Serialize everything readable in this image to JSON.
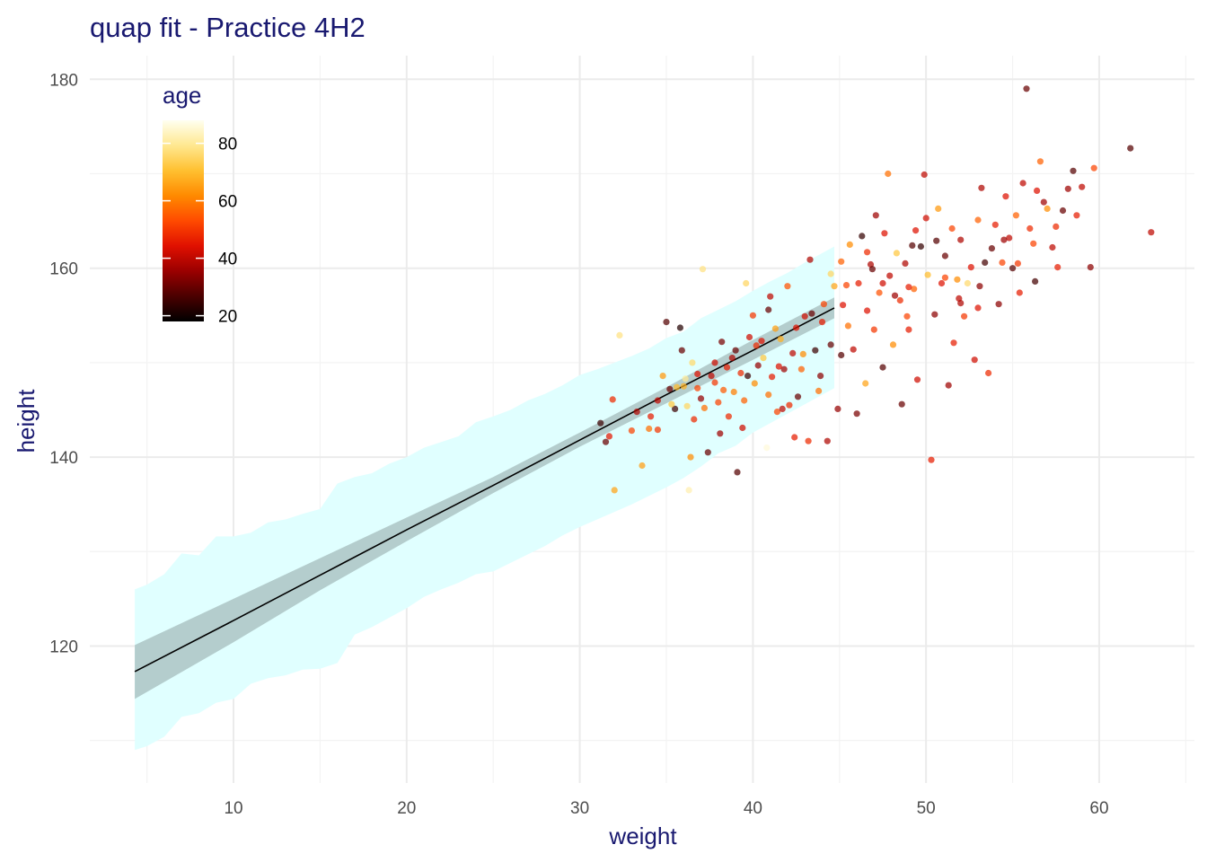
{
  "colors": {
    "title": "#191970",
    "grid_major": "#ebebeb",
    "grid_minor": "#f3f3f3",
    "pi_band": "#e0ffff",
    "ci_band": "#b4cdcd",
    "mean_line": "#000000",
    "legend_gradient": [
      "#000000",
      "#4a0000",
      "#9a0000",
      "#e01000",
      "#ff4a00",
      "#ff8a00",
      "#ffc030",
      "#ffe890",
      "#fffff0"
    ]
  },
  "chart_data": {
    "type": "scatter",
    "title": "quap fit - Practice 4H2",
    "xlabel": "weight",
    "ylabel": "height",
    "xlim": [
      1.7,
      65.5
    ],
    "ylim": [
      105.5,
      182.5
    ],
    "x_ticks": [
      10,
      20,
      30,
      40,
      50,
      60
    ],
    "y_ticks": [
      120,
      140,
      160,
      180
    ],
    "grid": true,
    "legend": {
      "title": "age",
      "position": "top-left",
      "ticks": [
        20,
        40,
        60,
        80
      ],
      "range": [
        18,
        88
      ]
    },
    "mean_line": {
      "x": [
        4.3,
        10,
        15,
        20,
        25,
        30,
        35,
        40,
        44.7
      ],
      "y": [
        117.3,
        122.7,
        127.5,
        132.3,
        137.0,
        141.8,
        146.6,
        151.3,
        155.8
      ]
    },
    "ci_band": {
      "x": [
        4.3,
        10,
        15,
        20,
        25,
        30,
        35,
        40,
        44.7
      ],
      "lower": [
        114.4,
        120.4,
        125.9,
        131.1,
        136.2,
        141.1,
        145.7,
        150.3,
        154.7
      ],
      "upper": [
        120.1,
        125.0,
        129.3,
        133.6,
        137.9,
        142.6,
        147.4,
        152.4,
        156.9
      ]
    },
    "pi_band": {
      "x": [
        4.3,
        5.0,
        6.0,
        7.0,
        8.0,
        9.0,
        10.0,
        11.0,
        12.0,
        13.0,
        14.0,
        15.0,
        16.0,
        17.0,
        18.0,
        19.0,
        20.0,
        21.0,
        22.0,
        23.0,
        24.0,
        25.0,
        26.0,
        27.0,
        28.0,
        29.0,
        30.0,
        31.0,
        32.0,
        33.0,
        34.0,
        35.0,
        36.0,
        37.0,
        38.0,
        39.0,
        40.0,
        41.0,
        42.0,
        43.0,
        44.0,
        44.7
      ],
      "upper": [
        126.0,
        126.5,
        127.6,
        129.8,
        129.6,
        131.6,
        131.6,
        132.0,
        133.1,
        133.4,
        134.0,
        134.5,
        137.2,
        137.9,
        138.3,
        139.3,
        140.0,
        141.0,
        141.6,
        142.2,
        143.7,
        144.3,
        145.0,
        146.0,
        146.7,
        147.6,
        148.7,
        149.3,
        150.0,
        150.7,
        151.5,
        152.6,
        153.3,
        154.7,
        155.6,
        156.5,
        157.6,
        158.6,
        159.5,
        160.6,
        161.6,
        162.3
      ],
      "lower": [
        109.0,
        109.4,
        110.4,
        112.5,
        112.9,
        114.0,
        114.4,
        116.0,
        116.6,
        116.9,
        117.5,
        117.6,
        118.2,
        121.2,
        122.0,
        123.0,
        124.0,
        125.2,
        126.0,
        126.7,
        127.6,
        127.9,
        128.8,
        129.7,
        130.6,
        131.7,
        132.6,
        133.4,
        134.2,
        135.0,
        135.9,
        136.8,
        137.8,
        139.0,
        140.4,
        141.2,
        142.6,
        143.6,
        144.6,
        145.6,
        146.6,
        147.3
      ]
    },
    "points": [
      [
        31.2,
        143.6,
        25
      ],
      [
        31.5,
        141.6,
        30
      ],
      [
        31.7,
        142.2,
        45
      ],
      [
        31.9,
        146.1,
        48
      ],
      [
        32.0,
        136.5,
        66
      ],
      [
        32.3,
        152.9,
        78
      ],
      [
        33.0,
        142.8,
        52
      ],
      [
        33.3,
        144.8,
        38
      ],
      [
        33.6,
        139.1,
        65
      ],
      [
        34.0,
        143.0,
        58
      ],
      [
        34.1,
        144.3,
        46
      ],
      [
        34.5,
        142.9,
        50
      ],
      [
        34.8,
        148.6,
        64
      ],
      [
        35.0,
        154.3,
        28
      ],
      [
        35.2,
        147.2,
        30
      ],
      [
        35.5,
        145.1,
        25
      ],
      [
        35.6,
        147.4,
        70
      ],
      [
        35.8,
        153.7,
        22
      ],
      [
        36.0,
        147.5,
        68
      ],
      [
        36.1,
        148.3,
        80
      ],
      [
        36.2,
        145.4,
        75
      ],
      [
        36.3,
        136.5,
        82
      ],
      [
        36.4,
        140.0,
        62
      ],
      [
        36.5,
        150.0,
        76
      ],
      [
        36.6,
        144.0,
        48
      ],
      [
        36.8,
        148.8,
        44
      ],
      [
        37.0,
        146.2,
        35
      ],
      [
        37.1,
        159.9,
        78
      ],
      [
        37.2,
        145.2,
        58
      ],
      [
        37.4,
        140.5,
        30
      ],
      [
        37.6,
        148.6,
        40
      ],
      [
        37.8,
        150.0,
        42
      ],
      [
        38.0,
        145.8,
        52
      ],
      [
        38.1,
        142.5,
        36
      ],
      [
        38.3,
        147.1,
        55
      ],
      [
        38.5,
        149.5,
        46
      ],
      [
        38.6,
        144.3,
        48
      ],
      [
        38.8,
        150.5,
        38
      ],
      [
        39.0,
        151.3,
        30
      ],
      [
        39.1,
        138.4,
        28
      ],
      [
        39.3,
        148.9,
        48
      ],
      [
        39.5,
        146.0,
        56
      ],
      [
        39.6,
        158.4,
        75
      ],
      [
        39.8,
        152.7,
        42
      ],
      [
        40.0,
        155.0,
        50
      ],
      [
        40.1,
        147.8,
        62
      ],
      [
        40.3,
        149.7,
        35
      ],
      [
        40.5,
        152.3,
        44
      ],
      [
        40.6,
        150.5,
        72
      ],
      [
        40.8,
        141.0,
        86
      ],
      [
        40.9,
        146.6,
        58
      ],
      [
        41.0,
        157.0,
        40
      ],
      [
        41.1,
        148.5,
        46
      ],
      [
        41.3,
        153.6,
        65
      ],
      [
        41.4,
        144.8,
        52
      ],
      [
        41.6,
        152.5,
        68
      ],
      [
        41.8,
        149.3,
        36
      ],
      [
        42.0,
        158.1,
        54
      ],
      [
        42.1,
        145.5,
        48
      ],
      [
        42.3,
        151.0,
        40
      ],
      [
        42.5,
        153.7,
        44
      ],
      [
        42.6,
        146.4,
        30
      ],
      [
        42.8,
        149.3,
        56
      ],
      [
        43.0,
        154.9,
        42
      ],
      [
        43.2,
        141.7,
        48
      ],
      [
        43.4,
        155.2,
        30
      ],
      [
        43.6,
        151.3,
        25
      ],
      [
        43.8,
        147.0,
        58
      ],
      [
        44.0,
        154.3,
        46
      ],
      [
        44.1,
        156.2,
        52
      ],
      [
        44.3,
        141.7,
        38
      ],
      [
        44.5,
        159.4,
        75
      ],
      [
        44.7,
        158.1,
        66
      ],
      [
        44.9,
        145.1,
        35
      ],
      [
        45.1,
        150.8,
        28
      ],
      [
        45.2,
        156.1,
        44
      ],
      [
        45.4,
        158.2,
        52
      ],
      [
        45.6,
        162.5,
        62
      ],
      [
        45.8,
        151.4,
        40
      ],
      [
        46.0,
        144.6,
        32
      ],
      [
        46.1,
        158.4,
        46
      ],
      [
        46.3,
        163.4,
        24
      ],
      [
        46.5,
        147.8,
        66
      ],
      [
        46.6,
        155.5,
        44
      ],
      [
        46.8,
        160.4,
        38
      ],
      [
        47.0,
        153.5,
        50
      ],
      [
        47.1,
        165.6,
        36
      ],
      [
        47.3,
        157.4,
        54
      ],
      [
        47.5,
        149.5,
        28
      ],
      [
        47.6,
        163.7,
        44
      ],
      [
        47.8,
        170.0,
        58
      ],
      [
        47.9,
        159.2,
        40
      ],
      [
        48.1,
        151.9,
        62
      ],
      [
        48.3,
        161.6,
        72
      ],
      [
        48.5,
        156.6,
        48
      ],
      [
        48.6,
        145.6,
        30
      ],
      [
        48.8,
        160.5,
        38
      ],
      [
        49.0,
        153.5,
        46
      ],
      [
        49.2,
        162.4,
        28
      ],
      [
        49.3,
        157.8,
        56
      ],
      [
        49.5,
        148.2,
        42
      ],
      [
        49.7,
        162.3,
        24
      ],
      [
        49.9,
        169.9,
        40
      ],
      [
        50.1,
        159.3,
        70
      ],
      [
        50.3,
        139.7,
        46
      ],
      [
        50.5,
        155.1,
        34
      ],
      [
        50.7,
        166.3,
        64
      ],
      [
        50.9,
        158.4,
        44
      ],
      [
        51.1,
        161.3,
        30
      ],
      [
        51.3,
        147.6,
        36
      ],
      [
        51.5,
        164.2,
        52
      ],
      [
        51.6,
        152.1,
        46
      ],
      [
        51.8,
        158.8,
        62
      ],
      [
        52.0,
        163.0,
        38
      ],
      [
        52.2,
        154.9,
        50
      ],
      [
        52.4,
        158.4,
        76
      ],
      [
        52.6,
        160.1,
        44
      ],
      [
        52.8,
        150.3,
        42
      ],
      [
        53.0,
        165.1,
        56
      ],
      [
        53.2,
        168.5,
        38
      ],
      [
        53.4,
        160.6,
        26
      ],
      [
        53.6,
        148.9,
        48
      ],
      [
        53.8,
        162.1,
        30
      ],
      [
        54.0,
        164.6,
        46
      ],
      [
        54.2,
        156.2,
        34
      ],
      [
        54.4,
        160.6,
        52
      ],
      [
        54.6,
        167.6,
        44
      ],
      [
        54.8,
        163.2,
        40
      ],
      [
        55.0,
        160.0,
        28
      ],
      [
        55.2,
        165.6,
        56
      ],
      [
        55.4,
        157.4,
        46
      ],
      [
        55.6,
        169.0,
        40
      ],
      [
        55.8,
        179.0,
        30
      ],
      [
        56.0,
        164.2,
        48
      ],
      [
        56.2,
        162.6,
        52
      ],
      [
        56.4,
        168.2,
        44
      ],
      [
        56.6,
        171.3,
        56
      ],
      [
        56.8,
        167.0,
        36
      ],
      [
        57.0,
        166.3,
        62
      ],
      [
        57.3,
        162.2,
        40
      ],
      [
        57.6,
        160.1,
        46
      ],
      [
        57.9,
        166.1,
        30
      ],
      [
        58.2,
        168.4,
        36
      ],
      [
        58.5,
        170.3,
        28
      ],
      [
        58.7,
        165.6,
        46
      ],
      [
        59.0,
        168.6,
        40
      ],
      [
        59.5,
        160.1,
        34
      ],
      [
        59.7,
        170.6,
        52
      ],
      [
        61.8,
        172.7,
        28
      ],
      [
        63.0,
        163.8,
        40
      ],
      [
        39.4,
        143.1,
        42
      ],
      [
        40.2,
        151.8,
        48
      ],
      [
        41.7,
        145.1,
        40
      ],
      [
        42.9,
        150.9,
        62
      ],
      [
        43.9,
        148.6,
        34
      ],
      [
        45.5,
        153.9,
        58
      ],
      [
        46.9,
        159.9,
        30
      ],
      [
        48.2,
        157.1,
        36
      ],
      [
        48.9,
        154.9,
        52
      ],
      [
        49.4,
        164.0,
        44
      ],
      [
        50.6,
        162.9,
        28
      ],
      [
        51.9,
        156.8,
        40
      ],
      [
        53.1,
        158.1,
        34
      ],
      [
        54.5,
        163.0,
        36
      ],
      [
        55.3,
        160.5,
        50
      ],
      [
        56.3,
        158.6,
        26
      ],
      [
        57.5,
        164.4,
        48
      ],
      [
        38.2,
        152.2,
        32
      ],
      [
        37.8,
        147.9,
        50
      ],
      [
        36.8,
        147.3,
        52
      ],
      [
        35.9,
        151.3,
        30
      ],
      [
        35.3,
        145.6,
        72
      ],
      [
        34.5,
        146.0,
        40
      ],
      [
        38.9,
        146.9,
        60
      ],
      [
        39.7,
        148.6,
        25
      ],
      [
        40.9,
        155.6,
        30
      ],
      [
        41.5,
        149.6,
        44
      ],
      [
        42.4,
        142.1,
        46
      ],
      [
        43.3,
        160.9,
        38
      ],
      [
        44.5,
        151.9,
        30
      ],
      [
        45.1,
        160.7,
        56
      ],
      [
        46.6,
        161.7,
        48
      ],
      [
        47.5,
        158.4,
        42
      ],
      [
        49.0,
        158.0,
        46
      ],
      [
        50.0,
        165.3,
        42
      ],
      [
        51.1,
        159.0,
        52
      ],
      [
        52.0,
        156.3,
        38
      ],
      [
        53.0,
        155.8,
        44
      ]
    ]
  }
}
